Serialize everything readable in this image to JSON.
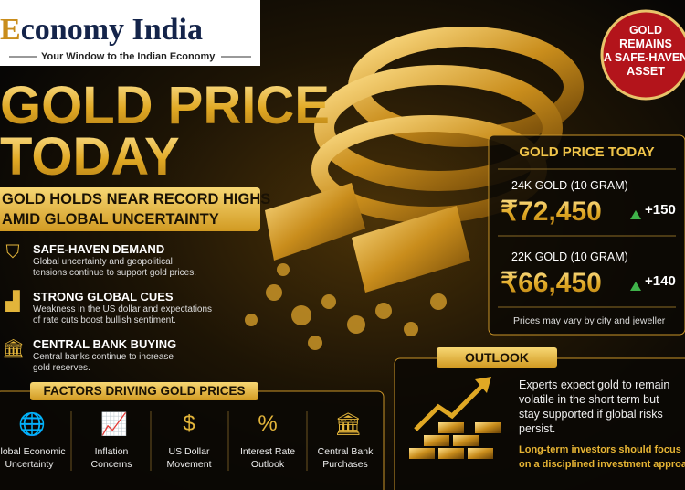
{
  "header": {
    "brand_initial": "E",
    "brand_rest": "conomy India",
    "tagline": "Your Window to the Indian Economy"
  },
  "title": {
    "line1": "GOLD PRICE",
    "line2": "TODAY"
  },
  "subtitle": [
    "GOLD HOLDS NEAR RECORD HIGHS",
    "AMID GLOBAL UNCERTAINTY"
  ],
  "points": [
    {
      "title": "SAFE-HAVEN DEMAND",
      "lines": [
        "Global uncertainty and geopolitical",
        "tensions continue to support gold prices."
      ]
    },
    {
      "title": "STRONG GLOBAL CUES",
      "lines": [
        "Weakness in the US dollar and expectations",
        "of rate cuts boost bullish sentiment."
      ]
    },
    {
      "title": "CENTRAL BANK BUYING",
      "lines": [
        "Central banks continue to increase",
        "gold reserves."
      ]
    }
  ],
  "factors": {
    "heading": "FACTORS DRIVING GOLD PRICES",
    "items": [
      {
        "icon": "🌐",
        "lines": [
          "Global Economic",
          "Uncertainty"
        ]
      },
      {
        "icon": "📈",
        "lines": [
          "Inflation",
          "Concerns"
        ]
      },
      {
        "icon": "$",
        "lines": [
          "US Dollar",
          "Movement"
        ]
      },
      {
        "icon": "%",
        "lines": [
          "Interest Rate",
          "Outlook"
        ]
      },
      {
        "icon": "🏛",
        "lines": [
          "Central Bank",
          "Purchases"
        ]
      }
    ]
  },
  "badge": [
    "GOLD",
    "REMAINS",
    "A SAFE-HAVEN",
    "ASSET"
  ],
  "price_panel": {
    "heading": "GOLD PRICE TODAY",
    "rows": [
      {
        "label": "24K GOLD (10 GRAM)",
        "price": "₹72,450",
        "change": "+150"
      },
      {
        "label": "22K GOLD (10 GRAM)",
        "price": "₹66,450",
        "change": "+140"
      }
    ],
    "note": "Prices may vary by city and jeweller"
  },
  "outlook": {
    "heading": "OUTLOOK",
    "lines": [
      "Experts expect gold to remain",
      "volatile in the short term but",
      "stay supported if global risks",
      "persist."
    ],
    "highlight": [
      "Long-term investors should focus",
      "on a disciplined investment approach."
    ]
  }
}
